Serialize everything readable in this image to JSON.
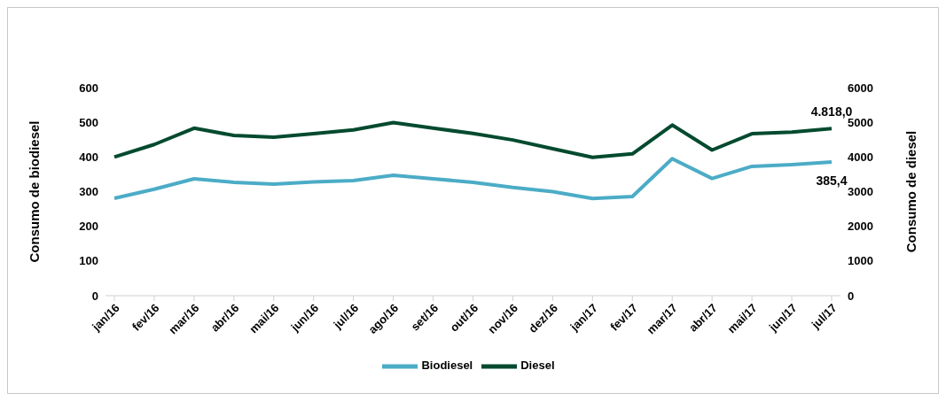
{
  "chart_data": {
    "type": "line",
    "categories": [
      "jan/16",
      "fev/16",
      "mar/16",
      "abr/16",
      "mai/16",
      "jun/16",
      "jul/16",
      "ago/16",
      "set/16",
      "out/16",
      "nov/16",
      "dez/16",
      "jan/17",
      "fev/17",
      "mar/17",
      "abr/17",
      "mai/17",
      "jun/17",
      "jul/17"
    ],
    "series": [
      {
        "name": "Biodiesel",
        "color": "#4bacc6",
        "values": [
          281,
          307,
          337,
          327,
          322,
          328,
          332,
          347,
          337,
          327,
          312,
          300,
          280,
          286,
          395,
          338,
          373,
          378,
          385.4
        ],
        "value_labels": [
          null,
          null,
          null,
          null,
          null,
          null,
          null,
          null,
          null,
          null,
          null,
          null,
          null,
          null,
          null,
          null,
          null,
          null,
          "385,4"
        ]
      },
      {
        "name": "Diesel",
        "color": "#034a2f",
        "axis": "y2",
        "values": [
          4000,
          4360,
          4830,
          4620,
          4570,
          4670,
          4780,
          4990,
          4830,
          4680,
          4490,
          4240,
          3990,
          4090,
          4920,
          4200,
          4670,
          4720,
          4818
        ],
        "value_labels": [
          null,
          null,
          null,
          null,
          null,
          null,
          null,
          null,
          null,
          null,
          null,
          null,
          null,
          null,
          null,
          null,
          null,
          null,
          "4.818,0"
        ]
      }
    ],
    "ylabel": "Consumo de biodiesel",
    "y2label": "Consumo de diesel",
    "ylim": [
      0,
      600
    ],
    "yticks": [
      0,
      100,
      200,
      300,
      400,
      500,
      600
    ],
    "y2lim": [
      0,
      6000
    ],
    "y2ticks": [
      0,
      1000,
      2000,
      3000,
      4000,
      5000,
      6000
    ],
    "legend": "bottom",
    "grid": false,
    "marker": "none",
    "line_style": "solid"
  }
}
